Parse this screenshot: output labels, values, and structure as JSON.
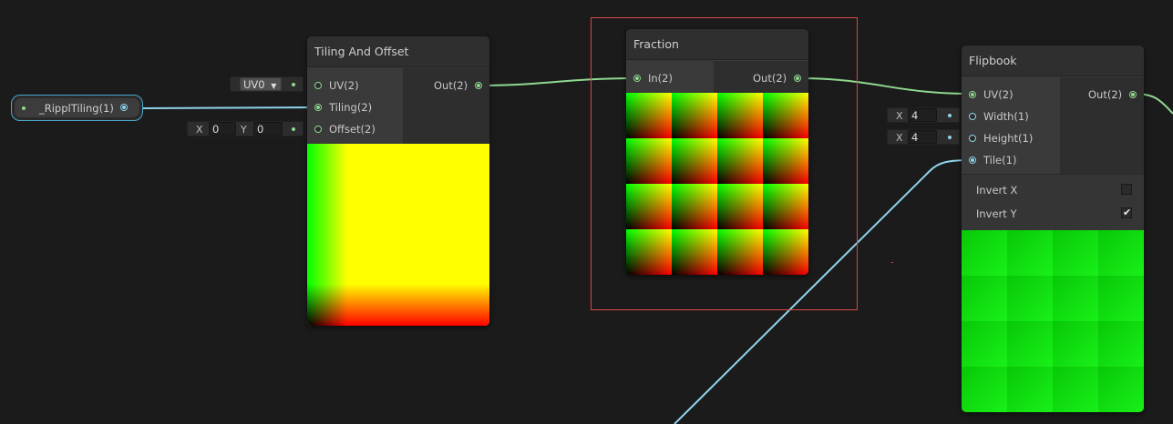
{
  "property_node": {
    "label": "_RipplTiling(1)"
  },
  "tiling_offset": {
    "title": "Tiling And Offset",
    "inputs": [
      "UV(2)",
      "Tiling(2)",
      "Offset(2)"
    ],
    "output": "Out(2)",
    "uv_dropdown": "UV0",
    "offset_x_label": "X",
    "offset_x": "0",
    "offset_y_label": "Y",
    "offset_y": "0"
  },
  "fraction": {
    "title": "Fraction",
    "input": "In(2)",
    "output": "Out(2)"
  },
  "flipbook": {
    "title": "Flipbook",
    "inputs": [
      "UV(2)",
      "Width(1)",
      "Height(1)",
      "Tile(1)"
    ],
    "output": "Out(2)",
    "width_x_label": "X",
    "width": "4",
    "height_x_label": "X",
    "height": "4",
    "invert_x_label": "Invert X",
    "invert_x": false,
    "invert_y_label": "Invert Y",
    "invert_y": true,
    "check_glyph": "✔"
  },
  "colors": {
    "background": "#1b1b1b",
    "wire_vector2": "#8fd88f",
    "wire_float": "#8fd4ea",
    "selection": "#d84848"
  }
}
